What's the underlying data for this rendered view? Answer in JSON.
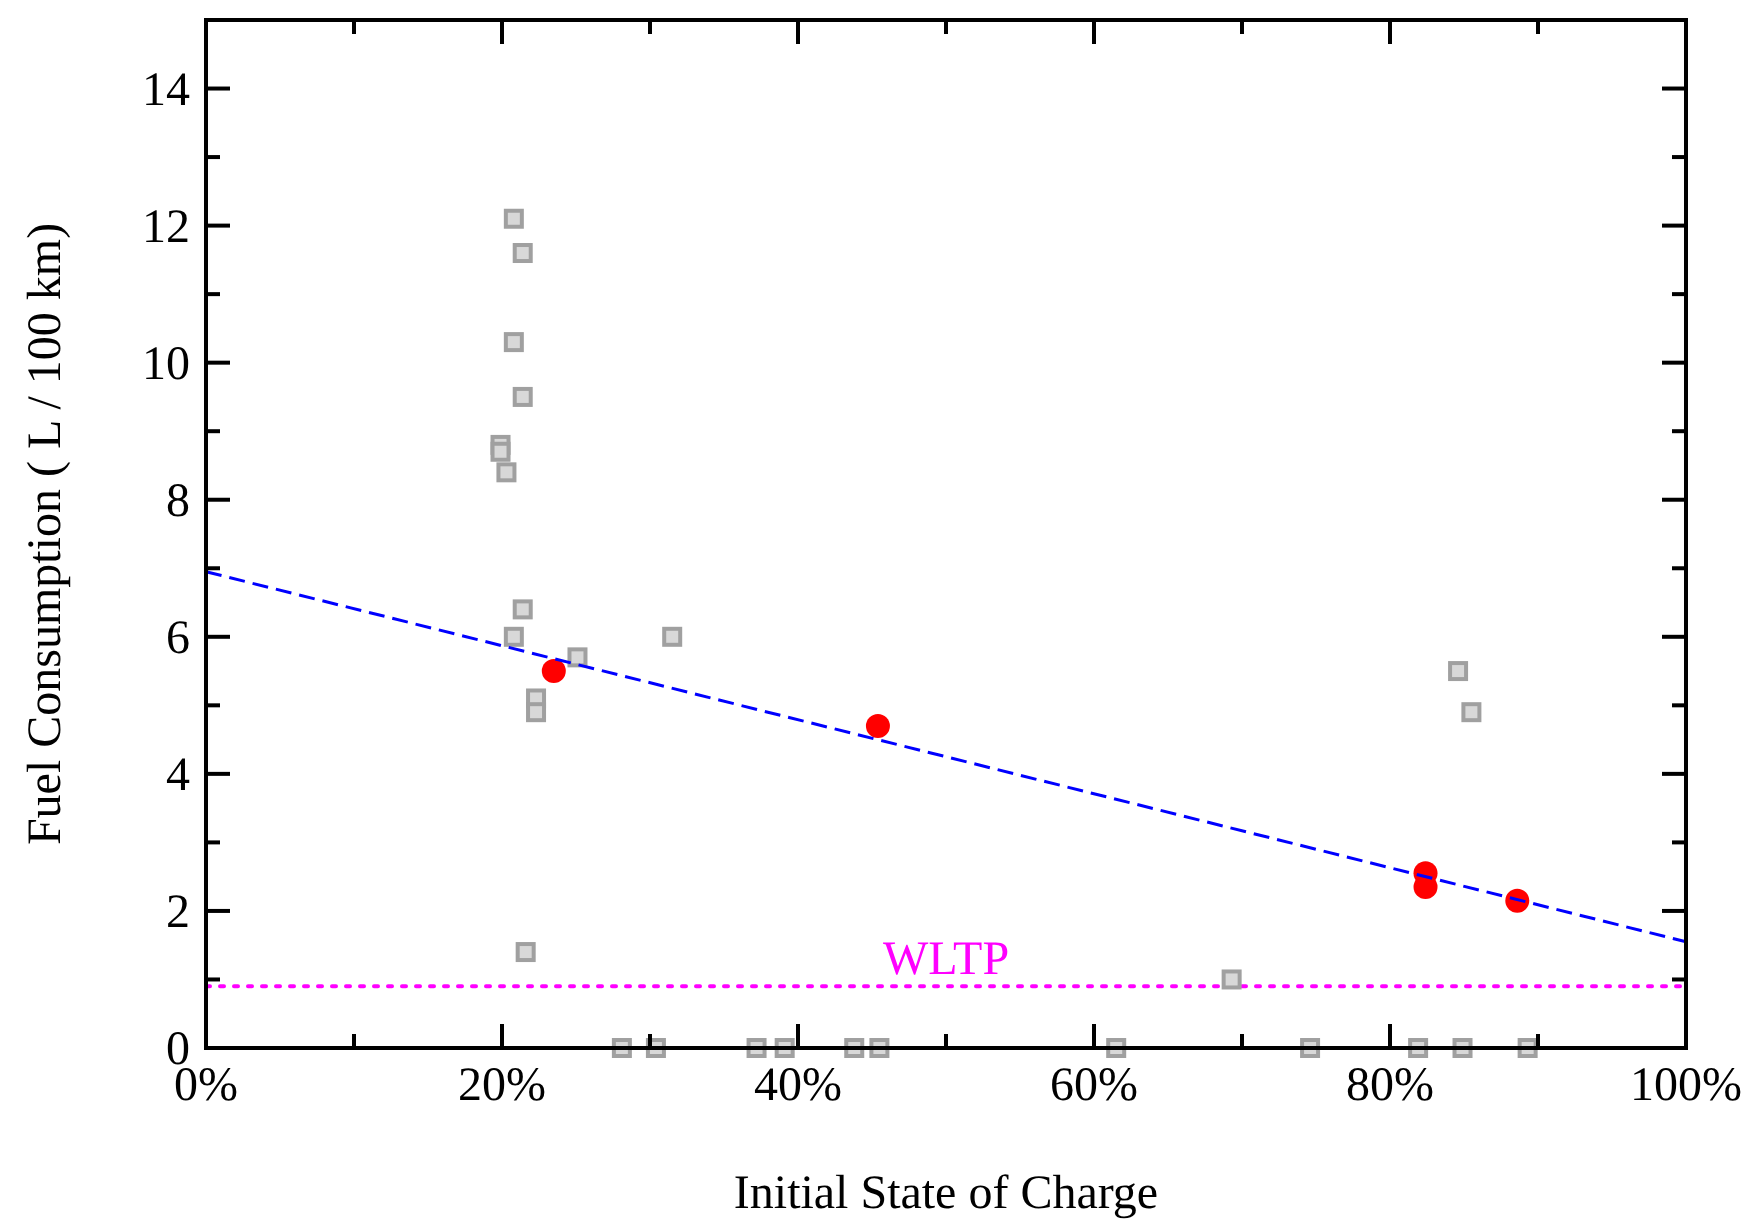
{
  "chart_data": {
    "type": "scatter",
    "xlabel": "Initial State of Charge",
    "ylabel": "Fuel Consumption ( L / 100 km)",
    "xlim": [
      0,
      100
    ],
    "ylim": [
      0,
      15
    ],
    "xticks": [
      {
        "value": 0,
        "label": "0%"
      },
      {
        "value": 10,
        "label": null
      },
      {
        "value": 20,
        "label": "20%"
      },
      {
        "value": 30,
        "label": null
      },
      {
        "value": 40,
        "label": "40%"
      },
      {
        "value": 50,
        "label": null
      },
      {
        "value": 60,
        "label": "60%"
      },
      {
        "value": 70,
        "label": null
      },
      {
        "value": 80,
        "label": "80%"
      },
      {
        "value": 90,
        "label": null
      },
      {
        "value": 100,
        "label": "100%"
      }
    ],
    "yticks": [
      0,
      {
        "value": 1,
        "label": null
      },
      2,
      {
        "value": 3,
        "label": null
      },
      4,
      {
        "value": 5,
        "label": null
      },
      6,
      {
        "value": 7,
        "label": null
      },
      8,
      {
        "value": 9,
        "label": null
      },
      10,
      {
        "value": 11,
        "label": null
      },
      12,
      {
        "value": 13,
        "label": null
      },
      14
    ],
    "grid": false,
    "series": [
      {
        "color": "#a0a0a0",
        "marker": "square",
        "x": [
          20.8,
          21.4,
          20.8,
          21.4,
          19.9,
          19.9,
          20.3,
          21.4,
          20.8,
          25.1,
          22.3,
          22.3,
          21.6,
          31.5,
          28.1,
          30.4,
          37.2,
          39.1,
          43.8,
          45.5,
          61.5,
          69.3,
          74.6,
          81.9,
          84.6,
          84.9,
          85.5,
          89.3
        ],
        "values": [
          12.1,
          11.6,
          10.3,
          9.5,
          8.8,
          8.7,
          8.4,
          6.4,
          6.0,
          5.7,
          5.1,
          4.9,
          1.4,
          6.0,
          0,
          0,
          0,
          0,
          0,
          0,
          0,
          1.0,
          0,
          0,
          5.5,
          0,
          4.9,
          0
        ]
      },
      {
        "color": "#ff0000",
        "marker": "circle",
        "x": [
          23.5,
          45.4,
          82.4,
          82.4,
          88.6
        ],
        "values": [
          5.5,
          4.7,
          2.55,
          2.35,
          2.15
        ]
      },
      {
        "type": "line",
        "color": "#0000ff",
        "line_style": "dashed",
        "marker": "none",
        "x": [
          0,
          100
        ],
        "values": [
          6.95,
          1.55
        ]
      }
    ],
    "ref_lines": [
      {
        "axis": "y",
        "value": 0.9,
        "label": "WLTP",
        "color": "#ff00ff",
        "line_style": "dotted"
      }
    ]
  }
}
